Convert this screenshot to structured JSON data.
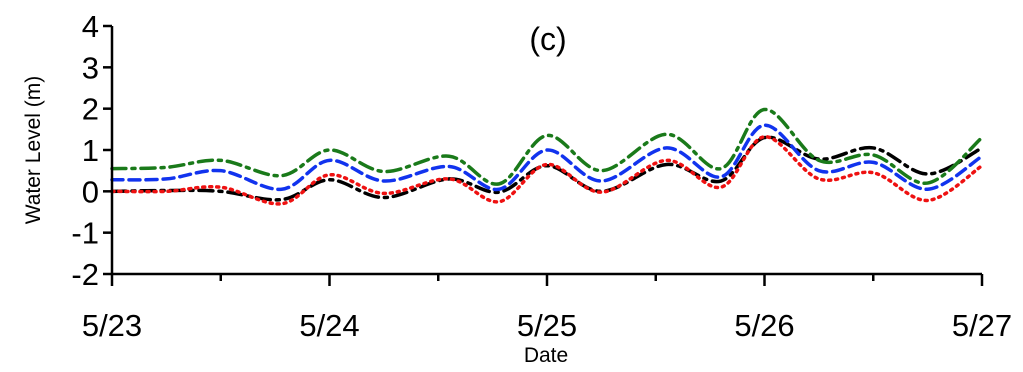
{
  "chart_data": {
    "type": "line",
    "panel_label": "(c)",
    "xlabel": "Date",
    "ylabel": "Water Level (m)",
    "x_ticks": [
      "5/23",
      "5/24",
      "5/25",
      "5/26",
      "5/27"
    ],
    "y_ticks": [
      "-2",
      "-1",
      "0",
      "1",
      "2",
      "3",
      "4"
    ],
    "xlim": [
      0,
      4
    ],
    "ylim": [
      -2,
      4
    ],
    "x_unit_note": "days",
    "grid": false,
    "series": [
      {
        "color": "#000000",
        "dash": "dashdot-black",
        "x": [
          0,
          0.25,
          0.5,
          0.78,
          1.0,
          1.25,
          1.55,
          1.78,
          2.0,
          2.25,
          2.55,
          2.8,
          3.0,
          3.25,
          3.5,
          3.75,
          4.0
        ],
        "values": [
          0.0,
          0.02,
          0.0,
          -0.2,
          0.28,
          -0.15,
          0.3,
          -0.02,
          0.62,
          0.0,
          0.65,
          0.25,
          1.3,
          0.78,
          1.05,
          0.42,
          1.05
        ]
      },
      {
        "color": "#ee1111",
        "dash": "dotted-red",
        "x": [
          0,
          0.25,
          0.5,
          0.78,
          1.0,
          1.25,
          1.55,
          1.78,
          2.0,
          2.25,
          2.55,
          2.8,
          3.0,
          3.25,
          3.5,
          3.75,
          4.0
        ],
        "values": [
          0.0,
          0.0,
          0.1,
          -0.3,
          0.4,
          -0.05,
          0.3,
          -0.25,
          0.65,
          -0.02,
          0.75,
          0.1,
          1.32,
          0.3,
          0.45,
          -0.22,
          0.62
        ]
      },
      {
        "color": "#1133ee",
        "dash": "dashed-blue",
        "x": [
          0,
          0.25,
          0.5,
          0.78,
          1.0,
          1.25,
          1.55,
          1.78,
          2.0,
          2.25,
          2.55,
          2.8,
          3.0,
          3.25,
          3.5,
          3.75,
          4.0
        ],
        "values": [
          0.28,
          0.3,
          0.5,
          0.05,
          0.75,
          0.25,
          0.6,
          0.05,
          1.0,
          0.25,
          1.05,
          0.35,
          1.6,
          0.5,
          0.7,
          0.05,
          0.85
        ]
      },
      {
        "color": "#1a7a1a",
        "dash": "dashdot-green",
        "x": [
          0,
          0.25,
          0.5,
          0.78,
          1.0,
          1.25,
          1.55,
          1.78,
          2.0,
          2.25,
          2.55,
          2.8,
          3.0,
          3.25,
          3.5,
          3.75,
          4.0
        ],
        "values": [
          0.55,
          0.58,
          0.75,
          0.38,
          1.0,
          0.48,
          0.85,
          0.18,
          1.35,
          0.5,
          1.38,
          0.55,
          1.98,
          0.75,
          0.88,
          0.2,
          1.3
        ]
      }
    ]
  }
}
